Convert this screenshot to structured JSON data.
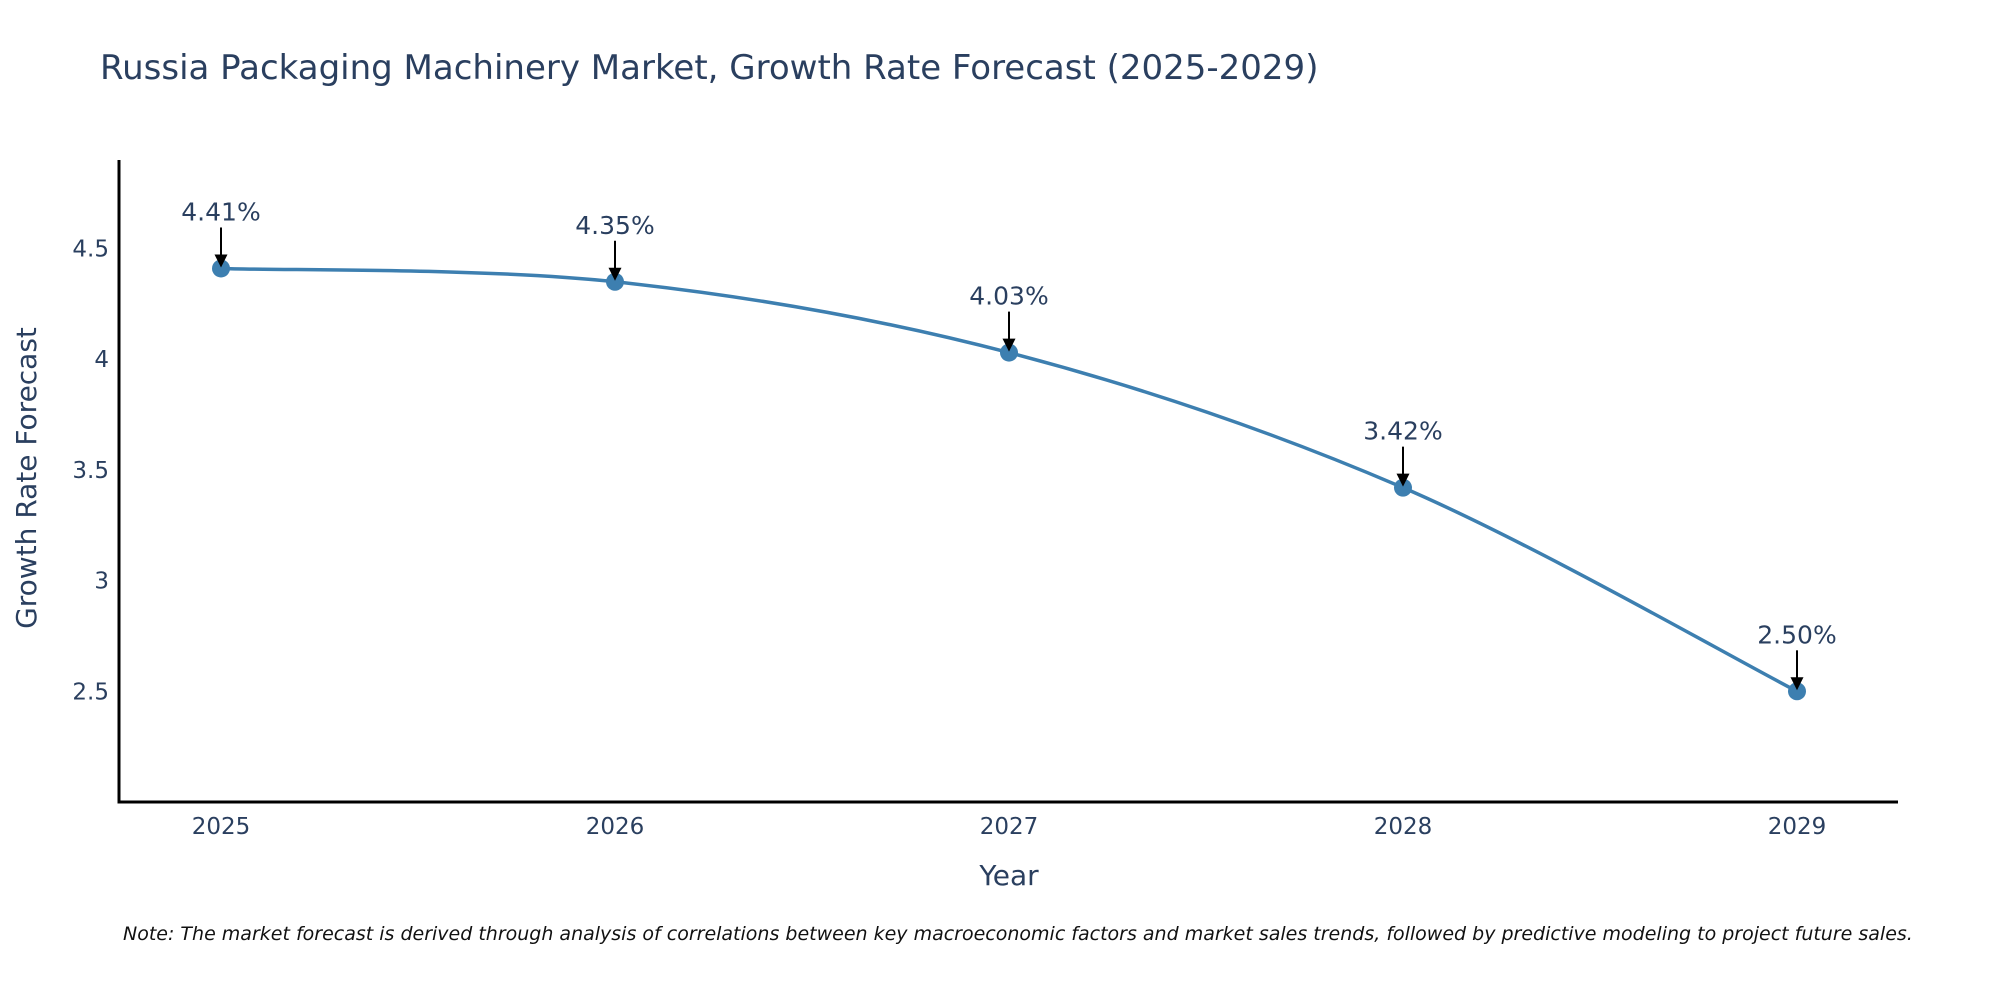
{
  "chart_data": {
    "type": "line",
    "title": "Russia Packaging Machinery Market, Growth Rate Forecast (2025-2029)",
    "xlabel": "Year",
    "ylabel": "Growth Rate Forecast",
    "categories": [
      "2025",
      "2026",
      "2027",
      "2028",
      "2029"
    ],
    "x": [
      2025,
      2026,
      2027,
      2028,
      2029
    ],
    "series": [
      {
        "name": "Growth Rate Forecast",
        "values": [
          4.41,
          4.35,
          4.03,
          3.42,
          2.5
        ],
        "labels": [
          "4.41%",
          "4.35%",
          "4.03%",
          "3.42%",
          "2.50%"
        ]
      }
    ],
    "ylim": [
      2.0,
      4.9
    ],
    "yticks": [
      2.5,
      3,
      3.5,
      4,
      4.5
    ],
    "ytick_labels": [
      "2.5",
      "3",
      "3.5",
      "4",
      "4.5"
    ],
    "grid": false,
    "line_shape": "spline",
    "note": "Note: The market forecast is derived through analysis of correlations between key macroeconomic factors and market sales trends, followed by predictive modeling to project future sales."
  },
  "colors": {
    "line": "#3d7fb0",
    "marker": "#3d7fb0",
    "axis": "#000000",
    "text": "#2a3f5f",
    "arrow": "#000000"
  }
}
